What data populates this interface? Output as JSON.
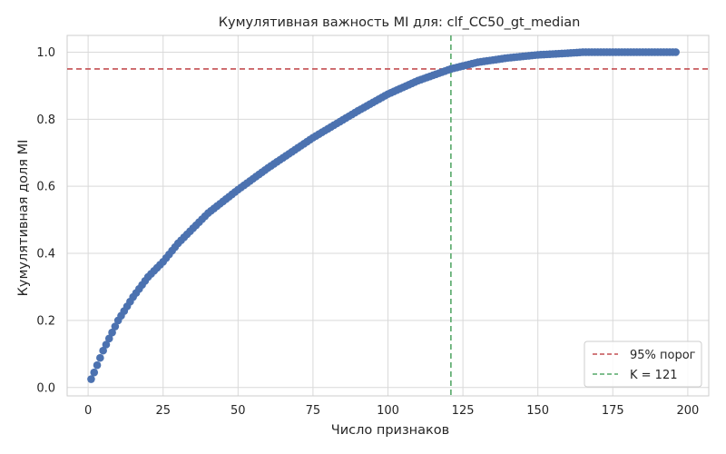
{
  "chart_data": {
    "type": "line",
    "title": "Кумулятивная важность MI для: clf_CC50_gt_median",
    "xlabel": "Число признаков",
    "ylabel": "Кумулятивная доля MI",
    "xlim": [
      -7,
      207
    ],
    "ylim": [
      -0.025,
      1.05
    ],
    "x_ticks": [
      0,
      25,
      50,
      75,
      100,
      125,
      150,
      175,
      200
    ],
    "y_ticks": [
      0.0,
      0.2,
      0.4,
      0.6,
      0.8,
      1.0
    ],
    "x_tick_labels": [
      "0",
      "25",
      "50",
      "75",
      "100",
      "125",
      "150",
      "175",
      "200"
    ],
    "y_tick_labels": [
      "0.0",
      "0.2",
      "0.4",
      "0.6",
      "0.8",
      "1.0"
    ],
    "grid": true,
    "legend_position": "bottom-right",
    "n_features": 196,
    "series": [
      {
        "name": "",
        "color": "#4c72b0",
        "marker": "circle",
        "anchors_x": [
          1,
          2,
          5,
          10,
          15,
          20,
          25,
          30,
          40,
          50,
          60,
          75,
          90,
          100,
          110,
          121,
          130,
          140,
          150,
          160,
          165,
          196
        ],
        "anchors_y": [
          0.025,
          0.045,
          0.11,
          0.2,
          0.27,
          0.33,
          0.375,
          0.43,
          0.52,
          0.59,
          0.655,
          0.745,
          0.825,
          0.875,
          0.915,
          0.95,
          0.97,
          0.983,
          0.992,
          0.997,
          1.0,
          1.0
        ]
      }
    ],
    "reference_lines": [
      {
        "orientation": "horizontal",
        "value": 0.95,
        "color": "#c44e52",
        "style": "dashed",
        "label": "95% порог"
      },
      {
        "orientation": "vertical",
        "value": 121,
        "color": "#55a868",
        "style": "dashed",
        "label": "K = 121"
      }
    ]
  }
}
